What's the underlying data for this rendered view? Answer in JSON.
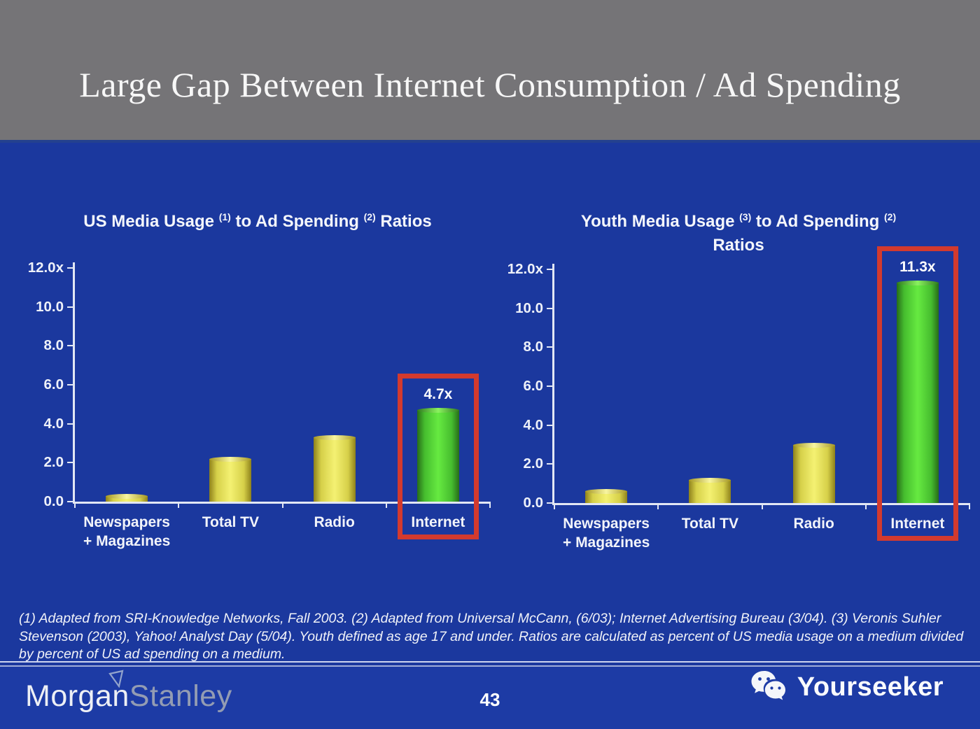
{
  "slide": {
    "title": "Large Gap Between Internet Consumption / Ad Spending",
    "page_number": "43"
  },
  "colors": {
    "background_blue": "#1b389e",
    "header_gray": "#757477",
    "bar_yellow": "#f4f172",
    "bar_green": "#66ea41",
    "highlight_red": "#d33a2e",
    "axis_white": "#e2e7f4"
  },
  "chart_data": [
    {
      "type": "bar",
      "title": "US Media Usage (1) to Ad Spending (2) Ratios",
      "title_segments": [
        {
          "t": "text",
          "v": "US Media Usage "
        },
        {
          "t": "sup",
          "v": "(1)"
        },
        {
          "t": "text",
          "v": " to Ad Spending "
        },
        {
          "t": "sup",
          "v": "(2)"
        },
        {
          "t": "text",
          "v": " Ratios"
        }
      ],
      "categories": [
        "Newspapers + Magazines",
        "Total TV",
        "Radio",
        "Internet"
      ],
      "category_lines": [
        [
          "Newspapers",
          "+ Magazines"
        ],
        [
          "Total TV"
        ],
        [
          "Radio"
        ],
        [
          "Internet"
        ]
      ],
      "values": [
        0.3,
        2.2,
        3.3,
        4.7
      ],
      "bar_colors": [
        "yellow",
        "yellow",
        "yellow",
        "green"
      ],
      "ylim": [
        0,
        12
      ],
      "ytick_labels": [
        "12.0x",
        "10.0",
        "8.0",
        "6.0",
        "4.0",
        "2.0",
        "0.0"
      ],
      "grid": false,
      "legend": "none",
      "highlight": {
        "index": 3,
        "label": "4.7x"
      }
    },
    {
      "type": "bar",
      "title": "Youth Media Usage (3) to Ad Spending (2) Ratios",
      "title_segments": [
        {
          "t": "text",
          "v": "Youth Media Usage "
        },
        {
          "t": "sup",
          "v": "(3)"
        },
        {
          "t": "text",
          "v": " to Ad Spending "
        },
        {
          "t": "sup",
          "v": "(2)"
        },
        {
          "t": "br",
          "v": ""
        },
        {
          "t": "text",
          "v": "Ratios"
        }
      ],
      "categories": [
        "Newspapers + Magazines",
        "Total TV",
        "Radio",
        "Internet"
      ],
      "category_lines": [
        [
          "Newspapers",
          "+ Magazines"
        ],
        [
          "Total TV"
        ],
        [
          "Radio"
        ],
        [
          "Internet"
        ]
      ],
      "values": [
        0.6,
        1.2,
        3.0,
        11.3
      ],
      "bar_colors": [
        "yellow",
        "yellow",
        "yellow",
        "green"
      ],
      "ylim": [
        0,
        12
      ],
      "ytick_labels": [
        "12.0x",
        "10.0",
        "8.0",
        "6.0",
        "4.0",
        "2.0",
        "0.0"
      ],
      "grid": false,
      "legend": "none",
      "highlight": {
        "index": 3,
        "label": "11.3x"
      }
    }
  ],
  "footnote": "(1) Adapted from SRI-Knowledge Networks, Fall 2003.  (2) Adapted from Universal McCann, (6/03); Internet Advertising Bureau (3/04). (3) Veronis Suhler Stevenson (2003), Yahoo! Analyst Day (5/04).  Youth defined as age 17 and under.  Ratios are calculated as percent of US media usage on a medium divided by percent of US ad spending on a medium.",
  "footer": {
    "brand_first": "Morgan",
    "brand_second": "Stanley",
    "watermark": "Yourseeker"
  }
}
